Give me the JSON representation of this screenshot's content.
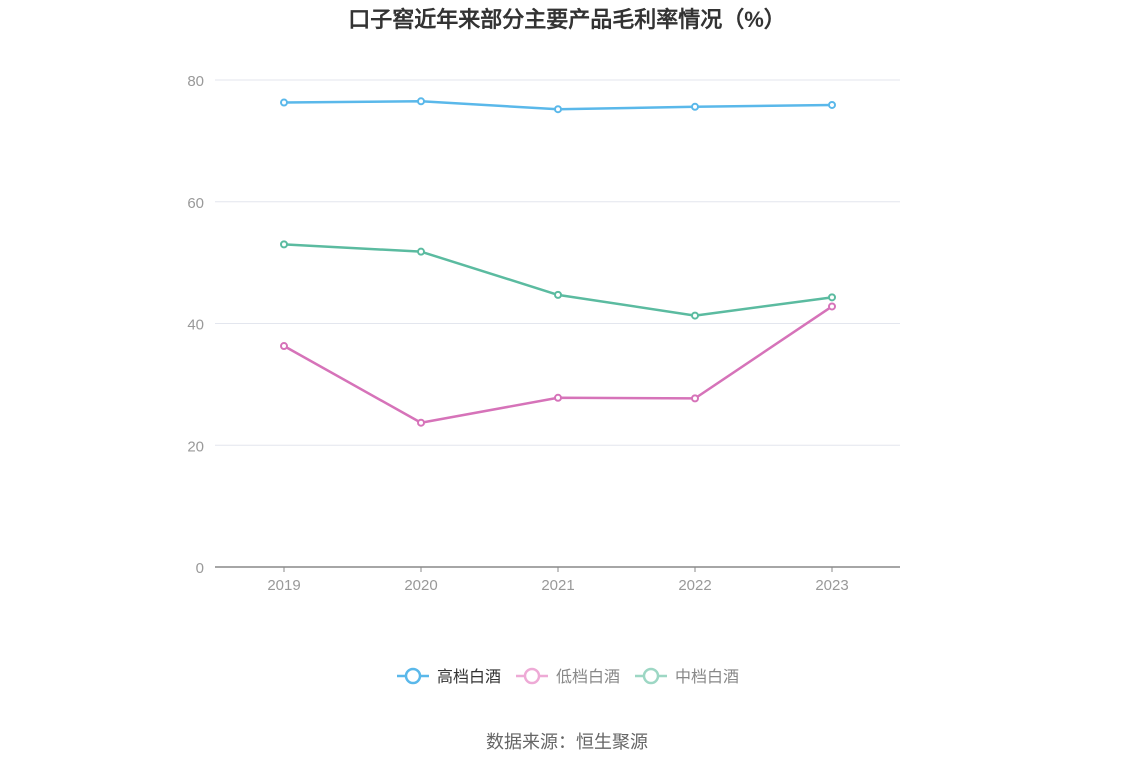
{
  "chart_data": {
    "type": "line",
    "title": "口子窖近年来部分主要产品毛利率情况（%）",
    "categories": [
      "2019",
      "2020",
      "2021",
      "2022",
      "2023"
    ],
    "series": [
      {
        "name": "高档白酒",
        "values": [
          76.3,
          76.5,
          75.2,
          75.6,
          75.9
        ],
        "color": "#5ab8ea",
        "legend_active": true
      },
      {
        "name": "低档白酒",
        "values": [
          36.3,
          23.7,
          27.8,
          27.7,
          42.8
        ],
        "color": "#d673b9",
        "legend_active": false
      },
      {
        "name": "中档白酒",
        "values": [
          53.0,
          51.8,
          44.7,
          41.3,
          44.3
        ],
        "color": "#5bbba0",
        "legend_active": false
      }
    ],
    "xlabel": "",
    "ylabel": "",
    "ylim": [
      0,
      80
    ],
    "yticks": [
      "0",
      "20",
      "40",
      "60",
      "80"
    ],
    "grid": true,
    "legend_position": "bottom-center"
  },
  "source": "数据来源：恒生聚源"
}
